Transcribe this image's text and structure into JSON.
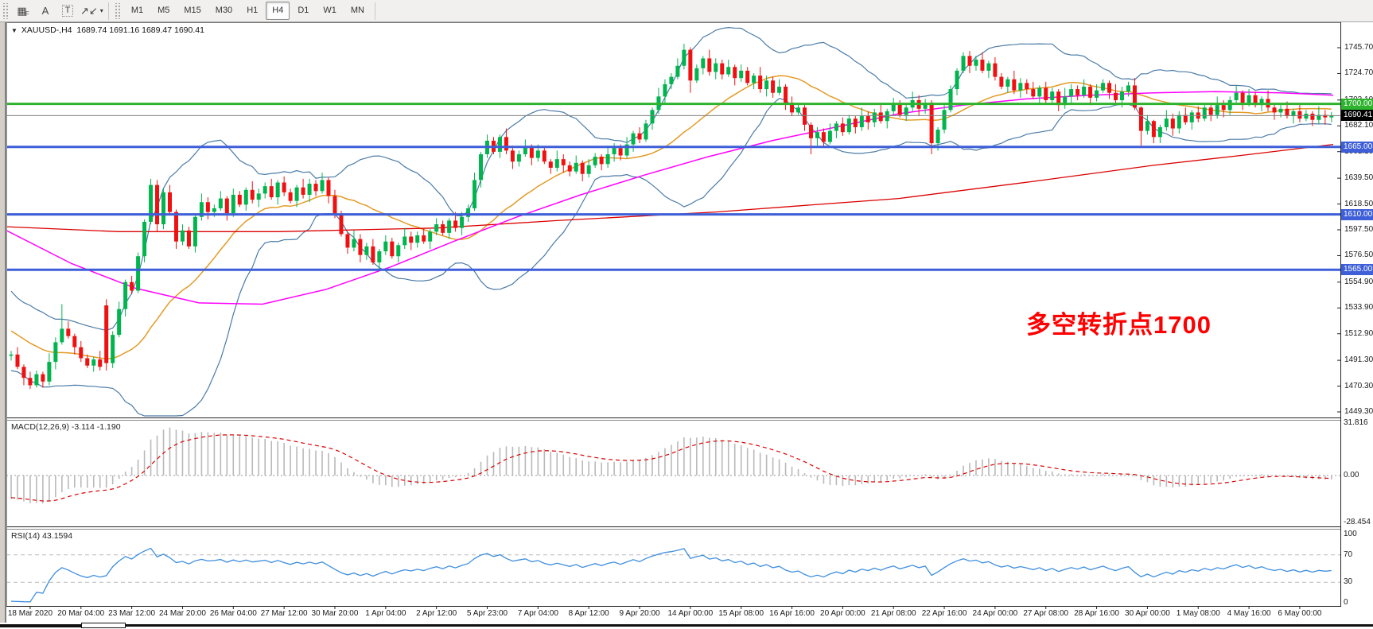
{
  "toolbar": {
    "tools": [
      {
        "id": "cycle-grid-icon",
        "glyph": "▦",
        "sub": "F"
      },
      {
        "id": "text-icon",
        "glyph": "A"
      },
      {
        "id": "text-label-icon",
        "glyph": "T",
        "boxed": true
      },
      {
        "id": "arrows-icon",
        "glyph": "↗↙",
        "caret": true
      }
    ],
    "timeframes": [
      "M1",
      "M5",
      "M15",
      "M30",
      "H1",
      "H4",
      "D1",
      "W1",
      "MN"
    ],
    "active_timeframe": "H4"
  },
  "chart": {
    "symbol_info": "XAUUSD-,H4",
    "ohlc_info": "1689.74 1691.16 1689.47 1690.41",
    "annotation": {
      "text": "多空转折点1700",
      "color": "#ff0000"
    }
  },
  "indicators": {
    "macd_label": "MACD(12,26,9) -3.114 -1.190",
    "rsi_label": "RSI(14) 43.1594"
  },
  "axes": {
    "price_ticks": [
      1745.7,
      1724.7,
      1703.1,
      1682.1,
      1661.1,
      1639.5,
      1618.5,
      1597.5,
      1576.5,
      1554.9,
      1533.9,
      1512.9,
      1491.3,
      1470.3,
      1449.3
    ],
    "macd_ticks": [
      {
        "v": 31.816,
        "label": "31.816"
      },
      {
        "v": 0,
        "label": "0.00"
      },
      {
        "v": -28.454,
        "label": "-28.454"
      }
    ],
    "rsi_ticks": [
      {
        "v": 100,
        "label": "100"
      },
      {
        "v": 70,
        "label": "70"
      },
      {
        "v": 30,
        "label": "30"
      },
      {
        "v": 0,
        "label": "0"
      }
    ],
    "time_labels": [
      "18 Mar 2020",
      "20 Mar 04:00",
      "23 Mar 12:00",
      "24 Mar 20:00",
      "26 Mar 04:00",
      "27 Mar 12:00",
      "30 Mar 20:00",
      "1 Apr 04:00",
      "2 Apr 12:00",
      "5 Apr 23:00",
      "7 Apr 04:00",
      "8 Apr 12:00",
      "9 Apr 20:00",
      "14 Apr 00:00",
      "15 Apr 08:00",
      "16 Apr 16:00",
      "20 Apr 00:00",
      "21 Apr 08:00",
      "22 Apr 16:00",
      "24 Apr 00:00",
      "27 Apr 08:00",
      "28 Apr 16:00",
      "30 Apr 00:00",
      "1 May 08:00",
      "4 May 16:00",
      "6 May 00:00"
    ]
  },
  "levels": [
    {
      "price": 1700.0,
      "label": "1700.00",
      "type": "hline",
      "color": "#2eb32e",
      "width": 3
    },
    {
      "price": 1690.41,
      "label": "1690.41",
      "type": "current",
      "color": "#808080",
      "width": 1
    },
    {
      "price": 1665.0,
      "label": "1665.00",
      "type": "hline",
      "color": "#3e5fd8",
      "width": 3
    },
    {
      "price": 1610.0,
      "label": "1610.00",
      "type": "hline",
      "color": "#3e5fd8",
      "width": 3
    },
    {
      "price": 1565.0,
      "label": "1565.00",
      "type": "hline",
      "color": "#3e5fd8",
      "width": 3
    }
  ],
  "colors": {
    "candle_up": "#00b44e",
    "candle_down": "#ef1111",
    "bollinger": "#4a7ba6",
    "ma_orange": "#e39b26",
    "ma_magenta": "#ff00ff",
    "ma_red": "#dc0000",
    "macd_hist": "#b9b9b9",
    "macd_signal": "#db0000",
    "rsi_line": "#3e8ede",
    "level_dash": "#bbbbbb",
    "axis_text": "#1a1a1a",
    "badge_black": "#000000"
  },
  "chart_data": {
    "type": "candlestick-ohlc",
    "symbol": "XAUUSD-",
    "timeframe": "H4",
    "current_price": 1690.41,
    "horizontal_levels": [
      1700.0,
      1665.0,
      1610.0,
      1565.0
    ],
    "price_range_visible": [
      1449.3,
      1745.7
    ],
    "closes": [
      1496,
      1486,
      1477,
      1471,
      1480,
      1474,
      1490,
      1506,
      1517,
      1511,
      1502,
      1493,
      1487,
      1492,
      1486,
      1489,
      1512,
      1533,
      1555,
      1548,
      1576,
      1604,
      1634,
      1602,
      1628,
      1612,
      1588,
      1597,
      1584,
      1608,
      1620,
      1612,
      1615,
      1623,
      1611,
      1626,
      1618,
      1630,
      1622,
      1627,
      1633,
      1624,
      1636,
      1628,
      1621,
      1632,
      1626,
      1635,
      1629,
      1638,
      1625,
      1610,
      1594,
      1583,
      1590,
      1577,
      1584,
      1571,
      1580,
      1588,
      1576,
      1585,
      1592,
      1587,
      1593,
      1588,
      1596,
      1602,
      1595,
      1605,
      1599,
      1608,
      1615,
      1638,
      1659,
      1670,
      1661,
      1673,
      1662,
      1653,
      1659,
      1665,
      1656,
      1662,
      1653,
      1648,
      1655,
      1650,
      1645,
      1652,
      1643,
      1650,
      1657,
      1651,
      1659,
      1664,
      1658,
      1667,
      1676,
      1671,
      1684,
      1695,
      1706,
      1716,
      1722,
      1731,
      1744,
      1719,
      1729,
      1737,
      1726,
      1733,
      1724,
      1730,
      1721,
      1727,
      1717,
      1723,
      1712,
      1719,
      1709,
      1714,
      1701,
      1693,
      1697,
      1683,
      1672,
      1677,
      1669,
      1678,
      1684,
      1677,
      1688,
      1681,
      1690,
      1685,
      1693,
      1686,
      1694,
      1700,
      1691,
      1697,
      1703,
      1696,
      1701,
      1668,
      1679,
      1695,
      1712,
      1727,
      1739,
      1731,
      1736,
      1727,
      1733,
      1722,
      1714,
      1720,
      1711,
      1717,
      1712,
      1706,
      1713,
      1703,
      1710,
      1699,
      1706,
      1712,
      1707,
      1714,
      1705,
      1711,
      1717,
      1709,
      1703,
      1710,
      1715,
      1697,
      1678,
      1686,
      1673,
      1681,
      1688,
      1680,
      1691,
      1685,
      1693,
      1688,
      1697,
      1691,
      1699,
      1695,
      1703,
      1709,
      1701,
      1707,
      1699,
      1704,
      1697,
      1693,
      1696,
      1690,
      1694,
      1688,
      1692,
      1687,
      1691,
      1689,
      1690.4
    ],
    "candle_overrides": {
      "8": [
        1506,
        1537,
        1504,
        1517
      ],
      "15": [
        1536,
        1541,
        1483,
        1489
      ],
      "22": [
        1604,
        1639,
        1602,
        1634
      ],
      "106": [
        1731,
        1749,
        1728,
        1744
      ],
      "107": [
        1744,
        1746,
        1709,
        1719
      ],
      "126": [
        1683,
        1685,
        1659,
        1672
      ],
      "145": [
        1701,
        1703,
        1659,
        1668
      ],
      "150": [
        1727,
        1742,
        1725,
        1739
      ],
      "178": [
        1697,
        1698,
        1666,
        1678
      ],
      "180": [
        1686,
        1687,
        1668,
        1673
      ]
    },
    "ma_red_anchors": [
      [
        8,
        1600
      ],
      [
        150,
        1596
      ],
      [
        350,
        1596
      ],
      [
        550,
        1599
      ],
      [
        700,
        1605
      ],
      [
        900,
        1612
      ],
      [
        1130,
        1623
      ],
      [
        1300,
        1637
      ],
      [
        1450,
        1650
      ],
      [
        1560,
        1658
      ],
      [
        1676,
        1667
      ]
    ],
    "ma_magenta_anchors": [
      [
        8,
        1597
      ],
      [
        90,
        1570
      ],
      [
        170,
        1550
      ],
      [
        250,
        1538
      ],
      [
        330,
        1537
      ],
      [
        410,
        1549
      ],
      [
        490,
        1567
      ],
      [
        570,
        1588
      ],
      [
        650,
        1608
      ],
      [
        730,
        1626
      ],
      [
        810,
        1642
      ],
      [
        890,
        1657
      ],
      [
        970,
        1670
      ],
      [
        1050,
        1681
      ],
      [
        1130,
        1692
      ],
      [
        1210,
        1699
      ],
      [
        1290,
        1704
      ],
      [
        1370,
        1707
      ],
      [
        1450,
        1709
      ],
      [
        1530,
        1710
      ],
      [
        1610,
        1709
      ],
      [
        1676,
        1707
      ]
    ],
    "synthesis": {
      "pre_closes": [
        1560,
        1552,
        1545,
        1538,
        1532,
        1527,
        1523,
        1520,
        1517,
        1515,
        1513,
        1511,
        1509,
        1507,
        1505,
        1503,
        1501,
        1499,
        1497,
        1495
      ],
      "bollinger": {
        "period": 20,
        "deviation": 2
      },
      "macd": {
        "fast": 12,
        "slow": 26,
        "signal": 9,
        "last_macd": -3.114,
        "last_signal": -1.19
      },
      "rsi": {
        "period": 14,
        "last": 43.1594,
        "levels": [
          70,
          30
        ]
      }
    }
  }
}
